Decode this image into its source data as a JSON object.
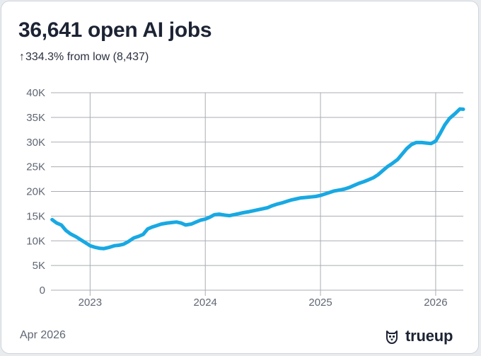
{
  "header": {
    "title": "36,641 open AI jobs",
    "change_arrow": "↑",
    "change_text": "334.3% from low (8,437)"
  },
  "footer": {
    "date": "Apr 2026",
    "brand": "trueup",
    "logo_icon": "owl-icon"
  },
  "colors": {
    "line": "#18a9e3",
    "grid": "#a9adb3",
    "tick_text": "#5f6673"
  },
  "chart_data": {
    "type": "line",
    "title": "36,641 open AI jobs",
    "xlabel": "",
    "ylabel": "",
    "ylim": [
      0,
      40000
    ],
    "xlim": [
      2022.66,
      2026.24
    ],
    "y_ticks": [
      0,
      5000,
      10000,
      15000,
      20000,
      25000,
      30000,
      35000,
      40000
    ],
    "y_tick_labels": [
      "0",
      "5K",
      "10K",
      "15K",
      "20K",
      "25K",
      "30K",
      "35K",
      "40K"
    ],
    "x_ticks": [
      2023,
      2024,
      2025,
      2026
    ],
    "x_tick_labels": [
      "2023",
      "2024",
      "2025",
      "2026"
    ],
    "grid": true,
    "series": [
      {
        "name": "Open AI jobs",
        "x": [
          2022.67,
          2022.71,
          2022.75,
          2022.79,
          2022.83,
          2022.88,
          2022.92,
          2022.96,
          2023.0,
          2023.04,
          2023.08,
          2023.12,
          2023.17,
          2023.21,
          2023.25,
          2023.29,
          2023.33,
          2023.38,
          2023.42,
          2023.46,
          2023.5,
          2023.54,
          2023.58,
          2023.62,
          2023.67,
          2023.71,
          2023.75,
          2023.79,
          2023.83,
          2023.88,
          2023.92,
          2023.96,
          2024.0,
          2024.04,
          2024.08,
          2024.12,
          2024.17,
          2024.21,
          2024.25,
          2024.29,
          2024.33,
          2024.38,
          2024.42,
          2024.46,
          2024.5,
          2024.54,
          2024.58,
          2024.62,
          2024.67,
          2024.71,
          2024.75,
          2024.79,
          2024.83,
          2024.88,
          2024.92,
          2024.96,
          2025.0,
          2025.04,
          2025.08,
          2025.12,
          2025.17,
          2025.21,
          2025.25,
          2025.29,
          2025.33,
          2025.38,
          2025.42,
          2025.46,
          2025.5,
          2025.54,
          2025.58,
          2025.62,
          2025.67,
          2025.71,
          2025.75,
          2025.79,
          2025.83,
          2025.88,
          2025.92,
          2025.96,
          2026.0,
          2026.04,
          2026.08,
          2026.12,
          2026.17,
          2026.21,
          2026.24
        ],
        "values": [
          14300,
          13600,
          13200,
          12100,
          11400,
          10800,
          10200,
          9600,
          9000,
          8700,
          8500,
          8437,
          8700,
          9000,
          9100,
          9300,
          9800,
          10600,
          10900,
          11300,
          12400,
          12800,
          13100,
          13400,
          13600,
          13700,
          13800,
          13600,
          13200,
          13400,
          13800,
          14200,
          14400,
          14800,
          15300,
          15400,
          15200,
          15100,
          15300,
          15500,
          15700,
          15900,
          16100,
          16300,
          16500,
          16700,
          17100,
          17400,
          17700,
          18000,
          18300,
          18500,
          18700,
          18800,
          18900,
          19000,
          19200,
          19500,
          19800,
          20100,
          20300,
          20500,
          20800,
          21200,
          21600,
          22000,
          22400,
          22800,
          23400,
          24200,
          25000,
          25600,
          26500,
          27600,
          28700,
          29500,
          29900,
          29900,
          29800,
          29700,
          30200,
          31800,
          33500,
          34800,
          35800,
          36700,
          36641
        ]
      }
    ]
  }
}
